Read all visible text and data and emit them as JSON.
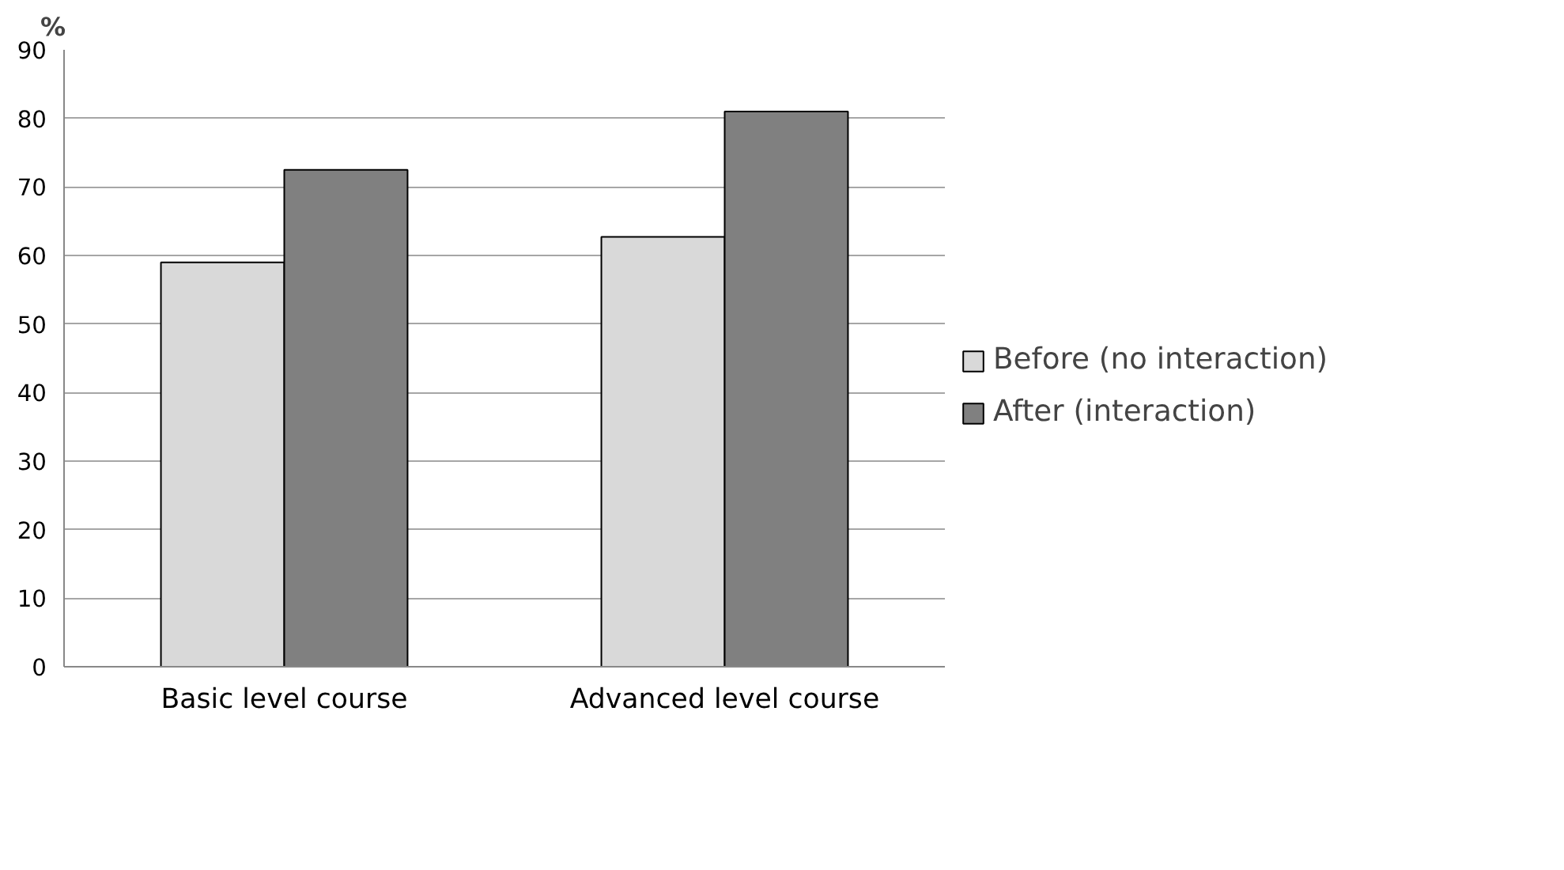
{
  "chart_data": {
    "type": "bar",
    "ylabel": "%",
    "categories": [
      "Basic level course",
      "Advanced level course"
    ],
    "series": [
      {
        "name": "Before (no interaction)",
        "color": "#d9d9d9",
        "values": [
          59,
          62.7
        ]
      },
      {
        "name": "After (interaction)",
        "color": "#808080",
        "values": [
          72.5,
          81
        ]
      }
    ],
    "ylim": [
      0,
      90
    ],
    "yticks": [
      0,
      10,
      20,
      30,
      40,
      50,
      60,
      70,
      80,
      90
    ],
    "grid": "y",
    "legend": "right"
  }
}
